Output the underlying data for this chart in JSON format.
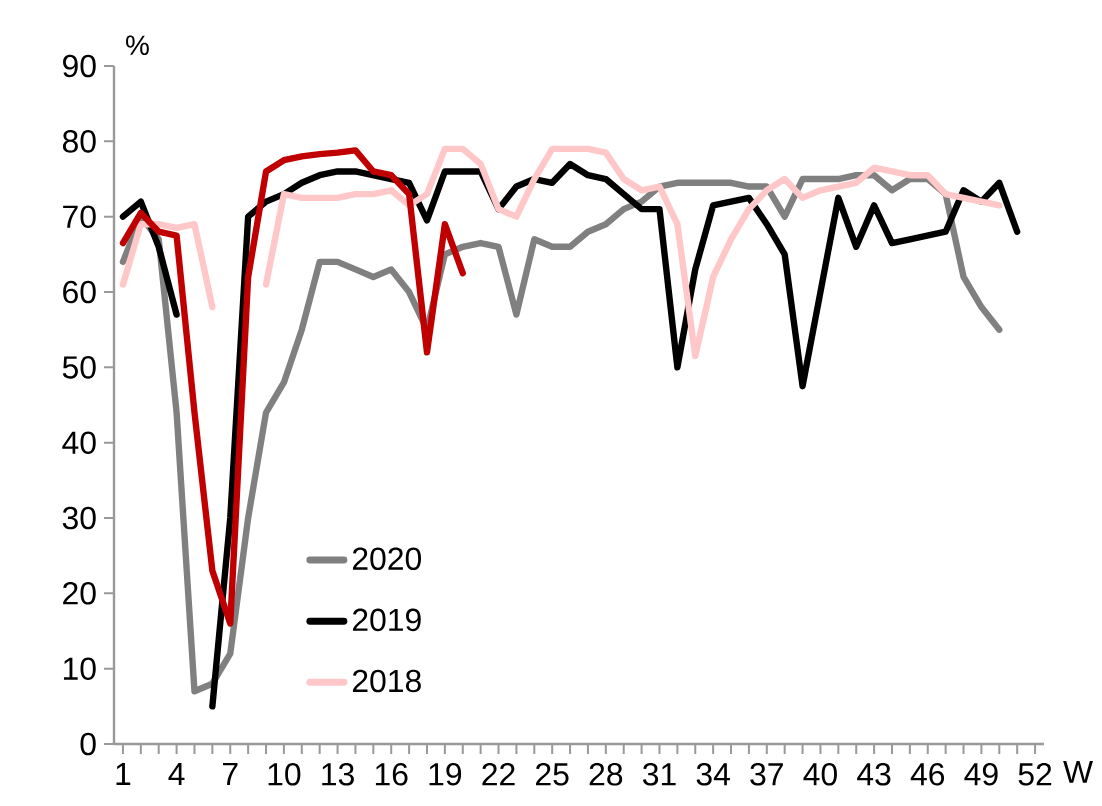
{
  "chart_data": {
    "type": "line",
    "xlabel": "W",
    "ylabel": "%",
    "x": [
      1,
      2,
      3,
      4,
      5,
      6,
      7,
      8,
      9,
      10,
      11,
      12,
      13,
      14,
      15,
      16,
      17,
      18,
      19,
      20,
      21,
      22,
      23,
      24,
      25,
      26,
      27,
      28,
      29,
      30,
      31,
      32,
      33,
      34,
      35,
      36,
      37,
      38,
      39,
      40,
      41,
      42,
      43,
      44,
      45,
      46,
      47,
      48,
      49,
      50,
      51
    ],
    "xlim": [
      0.5,
      52.5
    ],
    "ylim": [
      0,
      90
    ],
    "xticks": [
      1,
      {
        "value": 2,
        "label": null
      },
      {
        "value": 3,
        "label": null
      },
      4,
      {
        "value": 5,
        "label": null
      },
      {
        "value": 6,
        "label": null
      },
      7,
      {
        "value": 8,
        "label": null
      },
      {
        "value": 9,
        "label": null
      },
      10,
      {
        "value": 11,
        "label": null
      },
      {
        "value": 12,
        "label": null
      },
      13,
      {
        "value": 14,
        "label": null
      },
      {
        "value": 15,
        "label": null
      },
      16,
      {
        "value": 17,
        "label": null
      },
      {
        "value": 18,
        "label": null
      },
      19,
      {
        "value": 20,
        "label": null
      },
      {
        "value": 21,
        "label": null
      },
      22,
      {
        "value": 23,
        "label": null
      },
      {
        "value": 24,
        "label": null
      },
      25,
      {
        "value": 26,
        "label": null
      },
      {
        "value": 27,
        "label": null
      },
      28,
      {
        "value": 29,
        "label": null
      },
      {
        "value": 30,
        "label": null
      },
      31,
      {
        "value": 32,
        "label": null
      },
      {
        "value": 33,
        "label": null
      },
      34,
      {
        "value": 35,
        "label": null
      },
      {
        "value": 36,
        "label": null
      },
      37,
      {
        "value": 38,
        "label": null
      },
      {
        "value": 39,
        "label": null
      },
      40,
      {
        "value": 41,
        "label": null
      },
      {
        "value": 42,
        "label": null
      },
      43,
      {
        "value": 44,
        "label": null
      },
      {
        "value": 45,
        "label": null
      },
      46,
      {
        "value": 47,
        "label": null
      },
      {
        "value": 48,
        "label": null
      },
      49,
      {
        "value": 50,
        "label": null
      },
      {
        "value": 51,
        "label": null
      },
      52
    ],
    "yticks": [
      0,
      10,
      20,
      30,
      40,
      50,
      60,
      70,
      80,
      90
    ],
    "legend": "bottom left",
    "line_style": "solid",
    "series": [
      {
        "name": "2020",
        "color": "#808080",
        "values": [
          64,
          70,
          67,
          44,
          7,
          8,
          12,
          30,
          44,
          48,
          55,
          64,
          64,
          63,
          62,
          63,
          60,
          55,
          65,
          66,
          66.5,
          66,
          57,
          67,
          66,
          66,
          68,
          69,
          71,
          72,
          74,
          74.5,
          74.5,
          74.5,
          74.5,
          74,
          74,
          70,
          75,
          75,
          75,
          75.5,
          75.5,
          73.5,
          75,
          75,
          73,
          62,
          58,
          55,
          null
        ]
      },
      {
        "name": "2019",
        "color": "#000000",
        "values": [
          70,
          72,
          66,
          57,
          null,
          5,
          30,
          70,
          72,
          73,
          74.5,
          75.5,
          76,
          76,
          75.5,
          75,
          74.5,
          69.5,
          76,
          76,
          76,
          71,
          74,
          75,
          74.5,
          77,
          75.5,
          75,
          73,
          71,
          71,
          50,
          63,
          71.5,
          72,
          72.5,
          69,
          65,
          47.5,
          60,
          72.5,
          66,
          71.5,
          66.5,
          67,
          67.5,
          68,
          73.5,
          72,
          74.5,
          68
        ]
      },
      {
        "name": "2018",
        "color": "#ffc7c7",
        "values": [
          61,
          69,
          69,
          68.5,
          69,
          58,
          null,
          null,
          61,
          73,
          72.5,
          72.5,
          72.5,
          73,
          73,
          73.5,
          71.5,
          73,
          79,
          79,
          77,
          71,
          70,
          75,
          79,
          79,
          79,
          78.5,
          75,
          73.5,
          74,
          69,
          51.5,
          62,
          67,
          71,
          73.5,
          75,
          72.5,
          73.5,
          74,
          74.5,
          76.5,
          76,
          75.5,
          75.5,
          73,
          72.5,
          72,
          71.5,
          null
        ]
      },
      {
        "color": "#c00000",
        "values": [
          66.5,
          70.5,
          68,
          67.5,
          44,
          23,
          16,
          62,
          76,
          77.5,
          78,
          78.3,
          78.5,
          78.8,
          76,
          75.5,
          73,
          52,
          69,
          62.5,
          null,
          null,
          null,
          null,
          null,
          null,
          null,
          null,
          null,
          null,
          null,
          null,
          null,
          null,
          null,
          null,
          null,
          null,
          null,
          null,
          null,
          null,
          null,
          null,
          null,
          null,
          null,
          null,
          null,
          null,
          null
        ]
      }
    ]
  }
}
